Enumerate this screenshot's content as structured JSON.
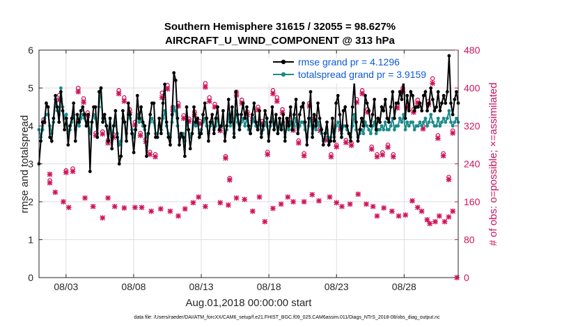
{
  "chart_data": {
    "type": "line",
    "title_line1": "Southern Hemisphere 31615 / 32055 = 98.627%",
    "title_line2": "AIRCRAFT_U_WIND_COMPONENT @ 313 hPa",
    "ylabel": "rmse and totalspread",
    "y2label": "# of obs: o=possible; ×=assimilated",
    "xlabel": "Aug.01,2018 00:00:00 start",
    "footer": "data file: /Users/raeder/DAI/ATM_forcXX/CAM6_setup/f.e21.FHIST_BGC.f09_025.CAM6assim.011/Diags_NTrS_2018-08/obs_diag_output.nc",
    "xlim": [
      1,
      32
    ],
    "ylim": [
      0,
      6
    ],
    "y2lim": [
      0,
      480
    ],
    "x_ticks": [
      {
        "value": 3,
        "label": "08/03"
      },
      {
        "value": 8,
        "label": "08/08"
      },
      {
        "value": 13,
        "label": "08/13"
      },
      {
        "value": 18,
        "label": "08/18"
      },
      {
        "value": 23,
        "label": "08/23"
      },
      {
        "value": 28,
        "label": "08/28"
      }
    ],
    "y_ticks": [
      "0",
      "1",
      "2",
      "3",
      "4",
      "5",
      "6"
    ],
    "y2_ticks": [
      "0",
      "80",
      "160",
      "240",
      "320",
      "400",
      "480"
    ],
    "colors": {
      "rmse": "#000000",
      "spread": "#1b8a8a",
      "obs": "#d0135a",
      "legend_text": "#0b5bd6"
    },
    "series": [
      {
        "name": "rmse grand pr = 4.1296",
        "values": [
          3.0,
          3.6,
          4.1,
          4.1,
          4.6,
          4.5,
          3.7,
          3.6,
          4.2,
          4.8,
          4.5,
          4.1,
          4.9,
          4.4,
          3.9,
          4.2,
          3.5,
          4.0,
          4.2,
          4.6,
          3.6,
          4.3,
          4.1,
          4.4,
          4.5,
          4.3,
          4.0,
          4.3,
          2.8,
          4.1,
          4.5,
          4.5,
          3.7,
          4.9,
          5.0,
          4.1,
          4.3,
          4.0,
          3.6,
          4.2,
          3.4,
          4.0,
          4.4,
          3.7,
          3.0,
          3.2,
          4.4,
          4.1,
          3.6,
          4.6,
          4.3,
          3.8,
          3.3,
          3.9,
          4.8,
          4.2,
          4.5,
          4.1,
          4.0,
          3.2,
          3.8,
          4.3,
          4.6,
          4.6,
          3.7,
          3.7,
          4.2,
          3.8,
          4.6,
          5.1,
          4.1,
          3.7,
          3.5,
          4.3,
          5.4,
          5.2,
          4.2,
          3.5,
          3.8,
          3.7,
          3.2,
          4.5,
          3.9,
          3.4,
          3.8,
          4.5,
          4.1,
          4.2,
          3.7,
          3.8,
          4.3,
          4.6,
          4.2,
          3.6,
          4.1,
          4.3,
          3.8,
          4.2,
          4.5,
          3.9,
          4.0,
          4.4,
          3.6,
          4.0,
          4.7,
          4.1,
          4.5,
          3.7,
          4.9,
          4.3,
          3.9,
          4.3,
          4.6,
          4.2,
          4.5,
          4.0,
          3.8,
          4.3,
          4.6,
          4.1,
          3.9,
          4.4,
          3.7,
          4.0,
          4.4,
          4.2,
          3.6,
          4.1,
          4.5,
          3.9,
          4.3,
          3.8,
          4.2,
          3.9,
          4.3,
          3.6,
          4.2,
          4.0,
          4.5,
          3.9,
          4.3,
          4.7,
          3.8,
          4.3,
          4.5,
          4.6,
          4.1,
          3.5,
          4.2,
          4.9,
          3.7,
          4.3,
          4.0,
          4.6,
          4.2,
          3.9,
          3.5,
          3.8,
          4.1,
          3.5,
          3.6,
          4.2,
          3.6,
          4.6,
          4.8,
          4.3,
          3.7,
          4.4,
          4.5,
          4.0,
          3.8,
          3.6,
          4.5,
          5.2,
          4.1,
          3.6,
          3.9,
          4.2,
          4.0,
          4.8,
          4.6,
          4.4,
          4.0,
          4.3,
          4.7,
          3.9,
          4.2,
          4.1,
          4.5,
          4.4,
          4.7,
          4.2,
          4.1,
          4.5,
          4.9,
          4.2,
          4.6,
          4.6,
          4.9,
          4.7,
          5.3,
          4.2,
          4.8,
          4.4,
          4.9,
          4.8,
          4.4,
          4.5,
          4.5,
          4.6,
          4.4,
          4.8,
          4.9,
          4.4,
          4.6,
          5.0,
          4.7,
          4.4,
          4.5,
          4.9,
          4.4,
          4.6,
          4.8,
          4.6,
          4.9,
          5.85,
          4.6,
          4.3,
          4.7,
          4.9,
          4.6
        ]
      },
      {
        "name": "totalspread grand pr = 3.9159",
        "values": [
          3.9,
          3.7,
          3.9,
          4.2,
          4.3,
          4.3,
          4.0,
          3.8,
          4.1,
          4.7,
          4.4,
          4.3,
          5.0,
          4.5,
          4.2,
          4.3,
          3.8,
          3.9,
          4.1,
          4.3,
          3.9,
          4.1,
          4.0,
          4.2,
          4.3,
          4.2,
          4.0,
          4.1,
          3.8,
          4.1,
          4.3,
          4.2,
          3.8,
          4.5,
          5.0,
          4.2,
          4.2,
          4.0,
          3.8,
          4.2,
          3.7,
          4.0,
          4.1,
          3.8,
          3.5,
          3.6,
          4.2,
          4.1,
          3.8,
          4.3,
          4.2,
          3.9,
          3.7,
          3.9,
          4.3,
          4.1,
          4.2,
          4.0,
          3.9,
          3.7,
          3.8,
          4.1,
          4.2,
          4.1,
          3.8,
          3.8,
          4.0,
          3.9,
          4.2,
          4.4,
          4.0,
          3.8,
          3.7,
          4.1,
          4.5,
          4.4,
          4.0,
          3.7,
          3.8,
          3.8,
          3.6,
          4.1,
          3.9,
          3.7,
          3.8,
          4.1,
          4.0,
          4.1,
          3.8,
          3.9,
          4.1,
          4.2,
          4.0,
          3.8,
          4.0,
          4.1,
          3.9,
          4.0,
          4.2,
          3.9,
          4.0,
          4.1,
          3.8,
          3.9,
          4.3,
          4.0,
          4.2,
          3.8,
          4.4,
          4.1,
          3.9,
          4.1,
          4.2,
          4.0,
          4.2,
          3.9,
          3.8,
          4.1,
          4.2,
          4.0,
          3.9,
          4.1,
          3.8,
          3.9,
          4.1,
          4.0,
          3.8,
          4.0,
          4.2,
          3.9,
          4.1,
          3.8,
          4.0,
          3.9,
          4.1,
          3.7,
          4.0,
          3.9,
          4.1,
          3.9,
          4.0,
          4.2,
          3.8,
          4.0,
          4.1,
          4.1,
          3.9,
          3.7,
          4.0,
          4.2,
          3.8,
          4.0,
          3.9,
          4.1,
          4.0,
          3.8,
          3.6,
          3.7,
          3.9,
          3.6,
          3.7,
          3.9,
          3.7,
          4.0,
          4.1,
          4.0,
          3.8,
          4.0,
          4.0,
          3.9,
          3.8,
          3.7,
          4.0,
          4.3,
          3.9,
          3.7,
          3.8,
          3.9,
          3.8,
          4.1,
          4.0,
          3.9,
          3.8,
          4.0,
          4.1,
          3.8,
          3.9,
          3.9,
          4.0,
          3.9,
          4.1,
          3.9,
          3.9,
          4.0,
          4.2,
          3.9,
          4.0,
          4.0,
          4.2,
          4.1,
          4.3,
          3.9,
          4.1,
          4.0,
          4.1,
          4.1,
          3.9,
          4.0,
          4.0,
          4.1,
          4.0,
          4.1,
          4.2,
          4.0,
          4.1,
          4.3,
          4.1,
          4.0,
          4.0,
          4.2,
          4.0,
          4.1,
          4.2,
          4.1,
          4.2,
          4.4,
          4.1,
          4.0,
          4.1,
          4.2,
          4.1
        ]
      }
    ],
    "obs_possible": [
      [
        1.35,
        334
      ],
      [
        1.8,
        205
      ],
      [
        2.5,
        385
      ],
      [
        3.0,
        226
      ],
      [
        3.5,
        230
      ],
      [
        3.9,
        400
      ],
      [
        4.3,
        378
      ],
      [
        4.6,
        348
      ],
      [
        5.2,
        305
      ],
      [
        5.7,
        308
      ],
      [
        6.1,
        290
      ],
      [
        6.5,
        302
      ],
      [
        6.9,
        395
      ],
      [
        7.3,
        380
      ],
      [
        7.7,
        355
      ],
      [
        8.1,
        328
      ],
      [
        8.5,
        305
      ],
      [
        8.9,
        292
      ],
      [
        9.2,
        265
      ],
      [
        9.6,
        260
      ],
      [
        10.1,
        390
      ],
      [
        10.5,
        406
      ],
      [
        10.9,
        360
      ],
      [
        11.3,
        368
      ],
      [
        11.7,
        342
      ],
      [
        12.1,
        335
      ],
      [
        12.5,
        350
      ],
      [
        12.9,
        330
      ],
      [
        13.3,
        410
      ],
      [
        13.6,
        380
      ],
      [
        14.0,
        366
      ],
      [
        14.4,
        315
      ],
      [
        14.8,
        256
      ],
      [
        15.1,
        210
      ],
      [
        15.6,
        392
      ],
      [
        16.0,
        375
      ],
      [
        16.4,
        350
      ],
      [
        16.8,
        338
      ],
      [
        17.2,
        360
      ],
      [
        17.5,
        330
      ],
      [
        17.9,
        265
      ],
      [
        18.3,
        395
      ],
      [
        18.6,
        380
      ],
      [
        19.0,
        355
      ],
      [
        19.4,
        334
      ],
      [
        19.8,
        316
      ],
      [
        20.2,
        289
      ],
      [
        20.6,
        262
      ],
      [
        21.0,
        368
      ],
      [
        21.4,
        338
      ],
      [
        21.8,
        315
      ],
      [
        22.2,
        295
      ],
      [
        22.6,
        260
      ],
      [
        23.0,
        280
      ],
      [
        23.3,
        318
      ],
      [
        23.7,
        290
      ],
      [
        24.1,
        284
      ],
      [
        24.5,
        376
      ],
      [
        24.9,
        395
      ],
      [
        25.3,
        355
      ],
      [
        25.6,
        276
      ],
      [
        26.0,
        260
      ],
      [
        26.4,
        264
      ],
      [
        26.8,
        280
      ],
      [
        27.2,
        260
      ],
      [
        27.5,
        365
      ],
      [
        27.9,
        400
      ],
      [
        28.3,
        365
      ],
      [
        28.7,
        355
      ],
      [
        29.0,
        375
      ],
      [
        29.4,
        320
      ],
      [
        29.8,
        372
      ],
      [
        30.1,
        420
      ],
      [
        30.5,
        300
      ],
      [
        30.9,
        262
      ],
      [
        31.3,
        212
      ],
      [
        31.6,
        310
      ]
    ],
    "obs_assimilated": [
      [
        1.35,
        328
      ],
      [
        1.8,
        200
      ],
      [
        2.5,
        375
      ],
      [
        3.0,
        222
      ],
      [
        3.5,
        224
      ],
      [
        3.9,
        392
      ],
      [
        4.3,
        370
      ],
      [
        4.6,
        342
      ],
      [
        5.2,
        300
      ],
      [
        5.7,
        303
      ],
      [
        6.1,
        284
      ],
      [
        6.5,
        296
      ],
      [
        6.9,
        388
      ],
      [
        7.3,
        372
      ],
      [
        7.7,
        348
      ],
      [
        8.1,
        322
      ],
      [
        8.5,
        300
      ],
      [
        8.9,
        287
      ],
      [
        9.2,
        260
      ],
      [
        9.6,
        255
      ],
      [
        10.1,
        380
      ],
      [
        10.5,
        398
      ],
      [
        10.9,
        354
      ],
      [
        11.3,
        362
      ],
      [
        11.7,
        336
      ],
      [
        12.1,
        330
      ],
      [
        12.5,
        344
      ],
      [
        12.9,
        325
      ],
      [
        13.3,
        402
      ],
      [
        13.6,
        372
      ],
      [
        14.0,
        360
      ],
      [
        14.4,
        310
      ],
      [
        14.8,
        252
      ],
      [
        15.1,
        206
      ],
      [
        15.6,
        385
      ],
      [
        16.0,
        368
      ],
      [
        16.4,
        344
      ],
      [
        16.8,
        332
      ],
      [
        17.2,
        354
      ],
      [
        17.5,
        325
      ],
      [
        17.9,
        260
      ],
      [
        18.3,
        388
      ],
      [
        18.6,
        372
      ],
      [
        19.0,
        348
      ],
      [
        19.4,
        328
      ],
      [
        19.8,
        311
      ],
      [
        20.2,
        284
      ],
      [
        20.6,
        257
      ],
      [
        21.0,
        362
      ],
      [
        21.4,
        333
      ],
      [
        21.8,
        310
      ],
      [
        22.2,
        290
      ],
      [
        22.6,
        255
      ],
      [
        23.0,
        276
      ],
      [
        23.3,
        313
      ],
      [
        23.7,
        285
      ],
      [
        24.1,
        279
      ],
      [
        24.5,
        370
      ],
      [
        24.9,
        388
      ],
      [
        25.3,
        349
      ],
      [
        25.6,
        271
      ],
      [
        26.0,
        255
      ],
      [
        26.4,
        259
      ],
      [
        26.8,
        275
      ],
      [
        27.2,
        255
      ],
      [
        27.5,
        358
      ],
      [
        27.9,
        392
      ],
      [
        28.3,
        358
      ],
      [
        28.7,
        349
      ],
      [
        29.0,
        368
      ],
      [
        29.4,
        314
      ],
      [
        29.8,
        365
      ],
      [
        30.1,
        410
      ],
      [
        30.5,
        294
      ],
      [
        30.9,
        257
      ],
      [
        31.3,
        207
      ],
      [
        31.6,
        305
      ],
      [
        1.8,
        218
      ],
      [
        2.2,
        180
      ],
      [
        2.8,
        160
      ],
      [
        3.2,
        148
      ],
      [
        4.4,
        168
      ],
      [
        5.0,
        150
      ],
      [
        5.7,
        126
      ],
      [
        6.1,
        168
      ],
      [
        6.6,
        150
      ],
      [
        7.3,
        147
      ],
      [
        8.1,
        148
      ],
      [
        8.6,
        148
      ],
      [
        9.3,
        140
      ],
      [
        10.0,
        145
      ],
      [
        10.7,
        140
      ],
      [
        11.3,
        130
      ],
      [
        11.8,
        145
      ],
      [
        12.4,
        158
      ],
      [
        12.8,
        170
      ],
      [
        13.3,
        150
      ],
      [
        14.4,
        158
      ],
      [
        15.0,
        153
      ],
      [
        15.6,
        168
      ],
      [
        16.2,
        165
      ],
      [
        16.8,
        140
      ],
      [
        17.3,
        170
      ],
      [
        17.7,
        118
      ],
      [
        18.3,
        146
      ],
      [
        18.9,
        155
      ],
      [
        19.4,
        170
      ],
      [
        19.8,
        160
      ],
      [
        20.6,
        160
      ],
      [
        21.2,
        175
      ],
      [
        21.7,
        162
      ],
      [
        22.5,
        170
      ],
      [
        23.0,
        158
      ],
      [
        23.4,
        150
      ],
      [
        24.0,
        155
      ],
      [
        24.6,
        176
      ],
      [
        25.2,
        155
      ],
      [
        25.7,
        150
      ],
      [
        26.0,
        130
      ],
      [
        26.5,
        147
      ],
      [
        27.1,
        140
      ],
      [
        27.6,
        130
      ],
      [
        28.1,
        132
      ],
      [
        28.6,
        162
      ],
      [
        29.0,
        148
      ],
      [
        29.3,
        140
      ],
      [
        29.7,
        122
      ],
      [
        29.9,
        114
      ],
      [
        30.3,
        118
      ],
      [
        30.6,
        130
      ],
      [
        31.0,
        118
      ],
      [
        31.3,
        128
      ],
      [
        31.6,
        140
      ],
      [
        31.9,
        0
      ]
    ],
    "legend": {
      "position": "top-right"
    }
  }
}
